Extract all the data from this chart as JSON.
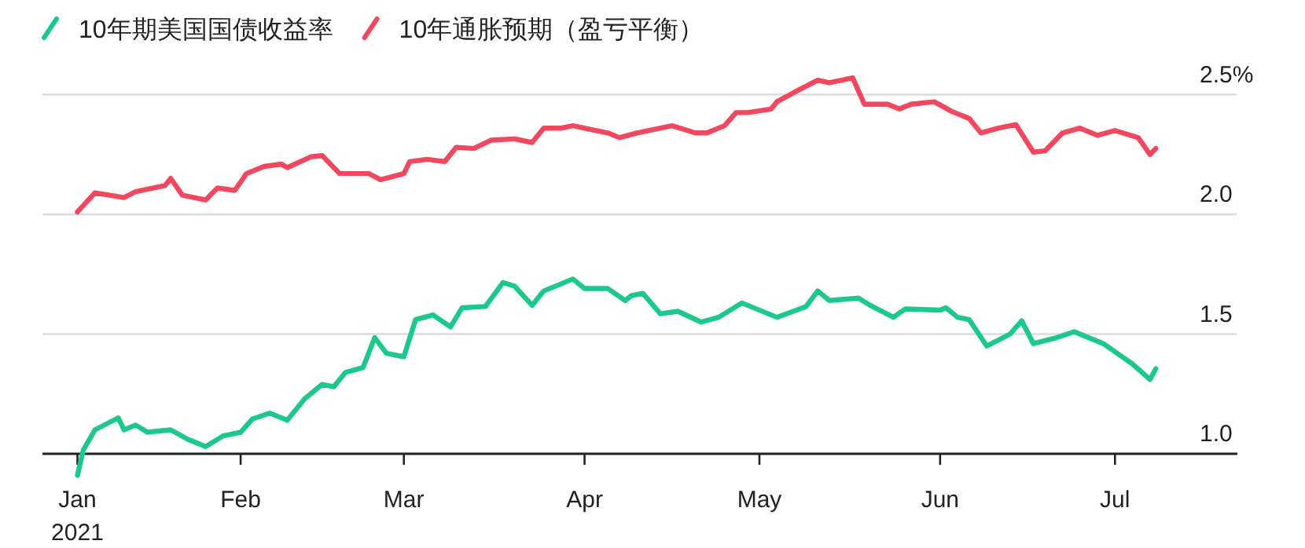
{
  "chart_data": {
    "type": "line",
    "x": [
      "2021-01-04",
      "2021-01-07",
      "2021-01-12",
      "2021-01-14",
      "2021-01-19",
      "2021-01-20",
      "2021-01-22",
      "2021-01-26",
      "2021-01-28",
      "2021-01-31",
      "2021-02-02",
      "2021-02-05",
      "2021-02-08",
      "2021-02-09",
      "2021-02-13",
      "2021-02-15",
      "2021-02-18",
      "2021-02-22",
      "2021-02-23",
      "2021-02-25",
      "2021-03-01",
      "2021-03-02",
      "2021-03-05",
      "2021-03-08",
      "2021-03-10",
      "2021-03-13",
      "2021-03-16",
      "2021-03-20",
      "2021-03-23",
      "2021-03-25",
      "2021-03-28",
      "2021-03-30",
      "2021-04-03",
      "2021-04-05",
      "2021-04-07",
      "2021-04-10",
      "2021-04-16",
      "2021-04-20",
      "2021-04-22",
      "2021-04-25",
      "2021-04-27",
      "2021-04-29",
      "2021-05-03",
      "2021-05-04",
      "2021-05-07",
      "2021-05-11",
      "2021-05-13",
      "2021-05-17",
      "2021-05-19",
      "2021-05-23",
      "2021-05-25",
      "2021-05-27",
      "2021-05-31",
      "2021-06-03",
      "2021-06-06",
      "2021-06-08",
      "2021-06-11",
      "2021-06-14",
      "2021-06-17",
      "2021-06-19",
      "2021-06-22",
      "2021-06-25",
      "2021-06-28",
      "2021-07-01",
      "2021-07-05",
      "2021-07-07",
      "2021-07-08"
    ],
    "series": [
      {
        "name": "10年期美国国债收益率",
        "color": "#1dc98a",
        "x": [
          "2021-01-04",
          "2021-01-05",
          "2021-01-07",
          "2021-01-11",
          "2021-01-12",
          "2021-01-14",
          "2021-01-16",
          "2021-01-20",
          "2021-01-23",
          "2021-01-26",
          "2021-01-29",
          "2021-02-01",
          "2021-02-03",
          "2021-02-06",
          "2021-02-09",
          "2021-02-12",
          "2021-02-15",
          "2021-02-17",
          "2021-02-19",
          "2021-02-22",
          "2021-02-24",
          "2021-02-26",
          "2021-03-01",
          "2021-03-03",
          "2021-03-06",
          "2021-03-09",
          "2021-03-11",
          "2021-03-15",
          "2021-03-18",
          "2021-03-20",
          "2021-03-23",
          "2021-03-25",
          "2021-03-30",
          "2021-04-01",
          "2021-04-05",
          "2021-04-08",
          "2021-04-09",
          "2021-04-11",
          "2021-04-14",
          "2021-04-17",
          "2021-04-21",
          "2021-04-24",
          "2021-04-28",
          "2021-05-04",
          "2021-05-09",
          "2021-05-11",
          "2021-05-13",
          "2021-05-18",
          "2021-05-20",
          "2021-05-24",
          "2021-05-26",
          "2021-06-01",
          "2021-06-02",
          "2021-06-04",
          "2021-06-06",
          "2021-06-09",
          "2021-06-13",
          "2021-06-15",
          "2021-06-17",
          "2021-06-21",
          "2021-06-24",
          "2021-06-29",
          "2021-07-04",
          "2021-07-07",
          "2021-07-08"
        ],
        "values": [
          0.91,
          1.015,
          1.1,
          1.15,
          1.1,
          1.12,
          1.09,
          1.1,
          1.06,
          1.03,
          1.075,
          1.09,
          1.145,
          1.17,
          1.14,
          1.23,
          1.29,
          1.28,
          1.34,
          1.36,
          1.485,
          1.42,
          1.405,
          1.56,
          1.58,
          1.53,
          1.61,
          1.615,
          1.715,
          1.7,
          1.62,
          1.68,
          1.73,
          1.69,
          1.69,
          1.64,
          1.66,
          1.67,
          1.585,
          1.595,
          1.55,
          1.57,
          1.63,
          1.57,
          1.615,
          1.68,
          1.64,
          1.65,
          1.62,
          1.57,
          1.605,
          1.6,
          1.61,
          1.57,
          1.56,
          1.45,
          1.5,
          1.555,
          1.46,
          1.485,
          1.51,
          1.46,
          1.375,
          1.31,
          1.355
        ]
      },
      {
        "name": "10年通胀预期（盈亏平衡）",
        "color": "#f2485f",
        "values": [
          2.01,
          2.09,
          2.07,
          2.095,
          2.12,
          2.15,
          2.08,
          2.06,
          2.11,
          2.1,
          2.17,
          2.2,
          2.21,
          2.195,
          2.24,
          2.245,
          2.17,
          2.17,
          2.17,
          2.145,
          2.17,
          2.22,
          2.23,
          2.22,
          2.28,
          2.275,
          2.31,
          2.315,
          2.3,
          2.36,
          2.36,
          2.37,
          2.35,
          2.34,
          2.32,
          2.34,
          2.37,
          2.34,
          2.34,
          2.37,
          2.425,
          2.425,
          2.44,
          2.47,
          2.51,
          2.56,
          2.55,
          2.57,
          2.46,
          2.46,
          2.44,
          2.46,
          2.47,
          2.43,
          2.4,
          2.34,
          2.36,
          2.375,
          2.26,
          2.265,
          2.34,
          2.36,
          2.33,
          2.35,
          2.32,
          2.25,
          2.275
        ]
      }
    ],
    "xlim": [
      "2020-12-29",
      "2021-07-22"
    ],
    "xticks": [
      {
        "value": "2021-01-04",
        "label": "Jan\n2021"
      },
      {
        "value": "2021-02-01",
        "label": "Feb"
      },
      {
        "value": "2021-03-01",
        "label": "Mar"
      },
      {
        "value": "2021-04-01",
        "label": "Apr"
      },
      {
        "value": "2021-05-01",
        "label": "May"
      },
      {
        "value": "2021-06-01",
        "label": "Jun"
      },
      {
        "value": "2021-07-01",
        "label": "Jul"
      }
    ],
    "ylim": [
      0.9,
      2.6
    ],
    "yticks": [
      {
        "value": 1.0,
        "label": "1.0"
      },
      1.5,
      {
        "value": 2.0,
        "label": "2.0"
      },
      {
        "value": 2.5,
        "label": "2.5%"
      }
    ],
    "grid": "y",
    "legend": "top left",
    "line_style": "solid"
  }
}
